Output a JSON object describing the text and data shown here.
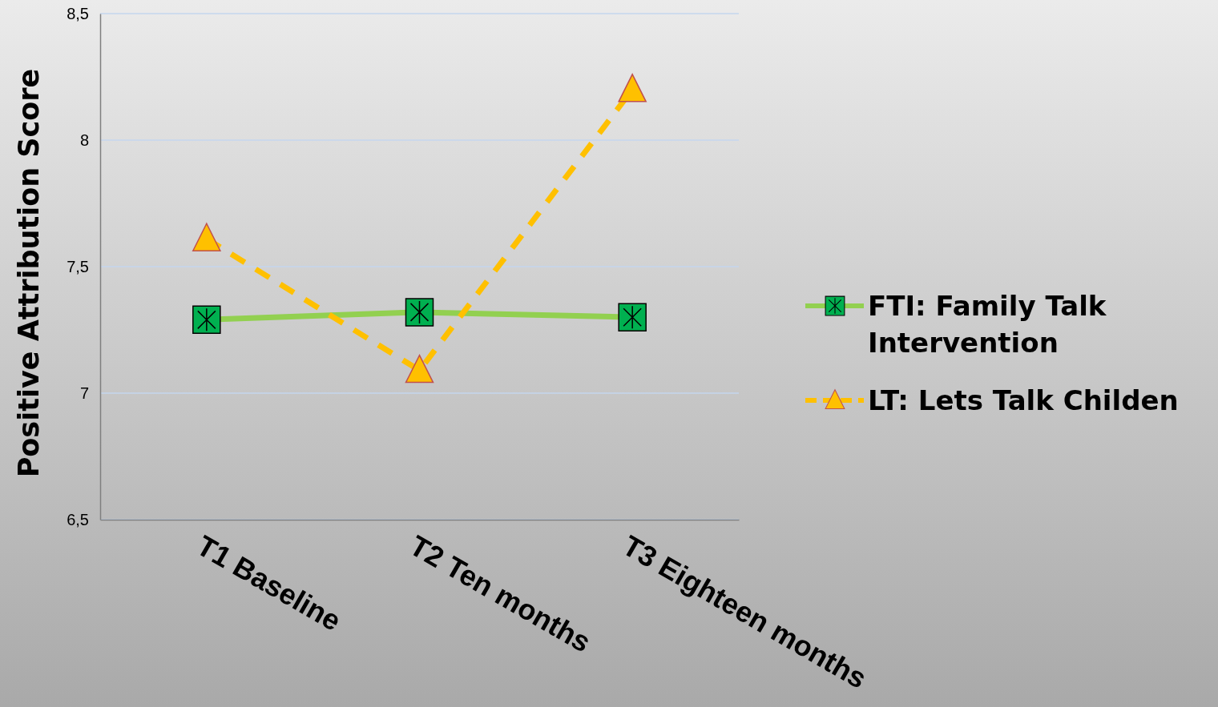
{
  "chart_data": {
    "type": "line",
    "ylabel": "Positive Attribution Score",
    "categories": [
      "T1 Baseline",
      "T2 Ten months",
      "T3 Eighteen months"
    ],
    "series": [
      {
        "name": "FTI: Family Talk Intervention",
        "color": "#92d050",
        "values": [
          7.29,
          7.32,
          7.3
        ],
        "marker": "square",
        "line_style": "solid"
      },
      {
        "name": "LT: Lets Talk Childen",
        "color": "#ffc000",
        "values": [
          7.61,
          7.09,
          8.2
        ],
        "marker": "triangle",
        "line_style": "dashed"
      }
    ],
    "ylim": [
      6.5,
      8.5
    ],
    "yticks": [
      {
        "value": 6.5,
        "label": "6,5"
      },
      7,
      {
        "value": 7.5,
        "label": "7,5"
      },
      8,
      {
        "value": 8.5,
        "label": "8,5"
      }
    ],
    "grid": "y",
    "legend": "right"
  }
}
